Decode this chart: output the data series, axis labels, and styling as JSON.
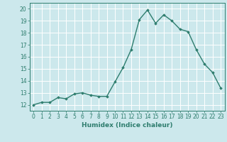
{
  "x": [
    0,
    1,
    2,
    3,
    4,
    5,
    6,
    7,
    8,
    9,
    10,
    11,
    12,
    13,
    14,
    15,
    16,
    17,
    18,
    19,
    20,
    21,
    22,
    23
  ],
  "y": [
    12.0,
    12.2,
    12.2,
    12.6,
    12.5,
    12.9,
    13.0,
    12.8,
    12.7,
    12.7,
    13.9,
    15.1,
    16.6,
    19.1,
    19.9,
    18.8,
    19.5,
    19.0,
    18.3,
    18.1,
    16.6,
    15.4,
    14.7,
    13.4
  ],
  "xlabel": "Humidex (Indice chaleur)",
  "xlim": [
    -0.5,
    23.5
  ],
  "ylim": [
    11.5,
    20.5
  ],
  "yticks": [
    12,
    13,
    14,
    15,
    16,
    17,
    18,
    19,
    20
  ],
  "xticks": [
    0,
    1,
    2,
    3,
    4,
    5,
    6,
    7,
    8,
    9,
    10,
    11,
    12,
    13,
    14,
    15,
    16,
    17,
    18,
    19,
    20,
    21,
    22,
    23
  ],
  "line_color": "#2e7d6e",
  "marker": "D",
  "marker_size": 1.8,
  "bg_color": "#cce8ec",
  "grid_color": "#ffffff",
  "tick_color": "#2e7d6e",
  "label_color": "#2e7d6e",
  "line_width": 1.0,
  "xlabel_fontsize": 6.5,
  "tick_fontsize": 5.5
}
